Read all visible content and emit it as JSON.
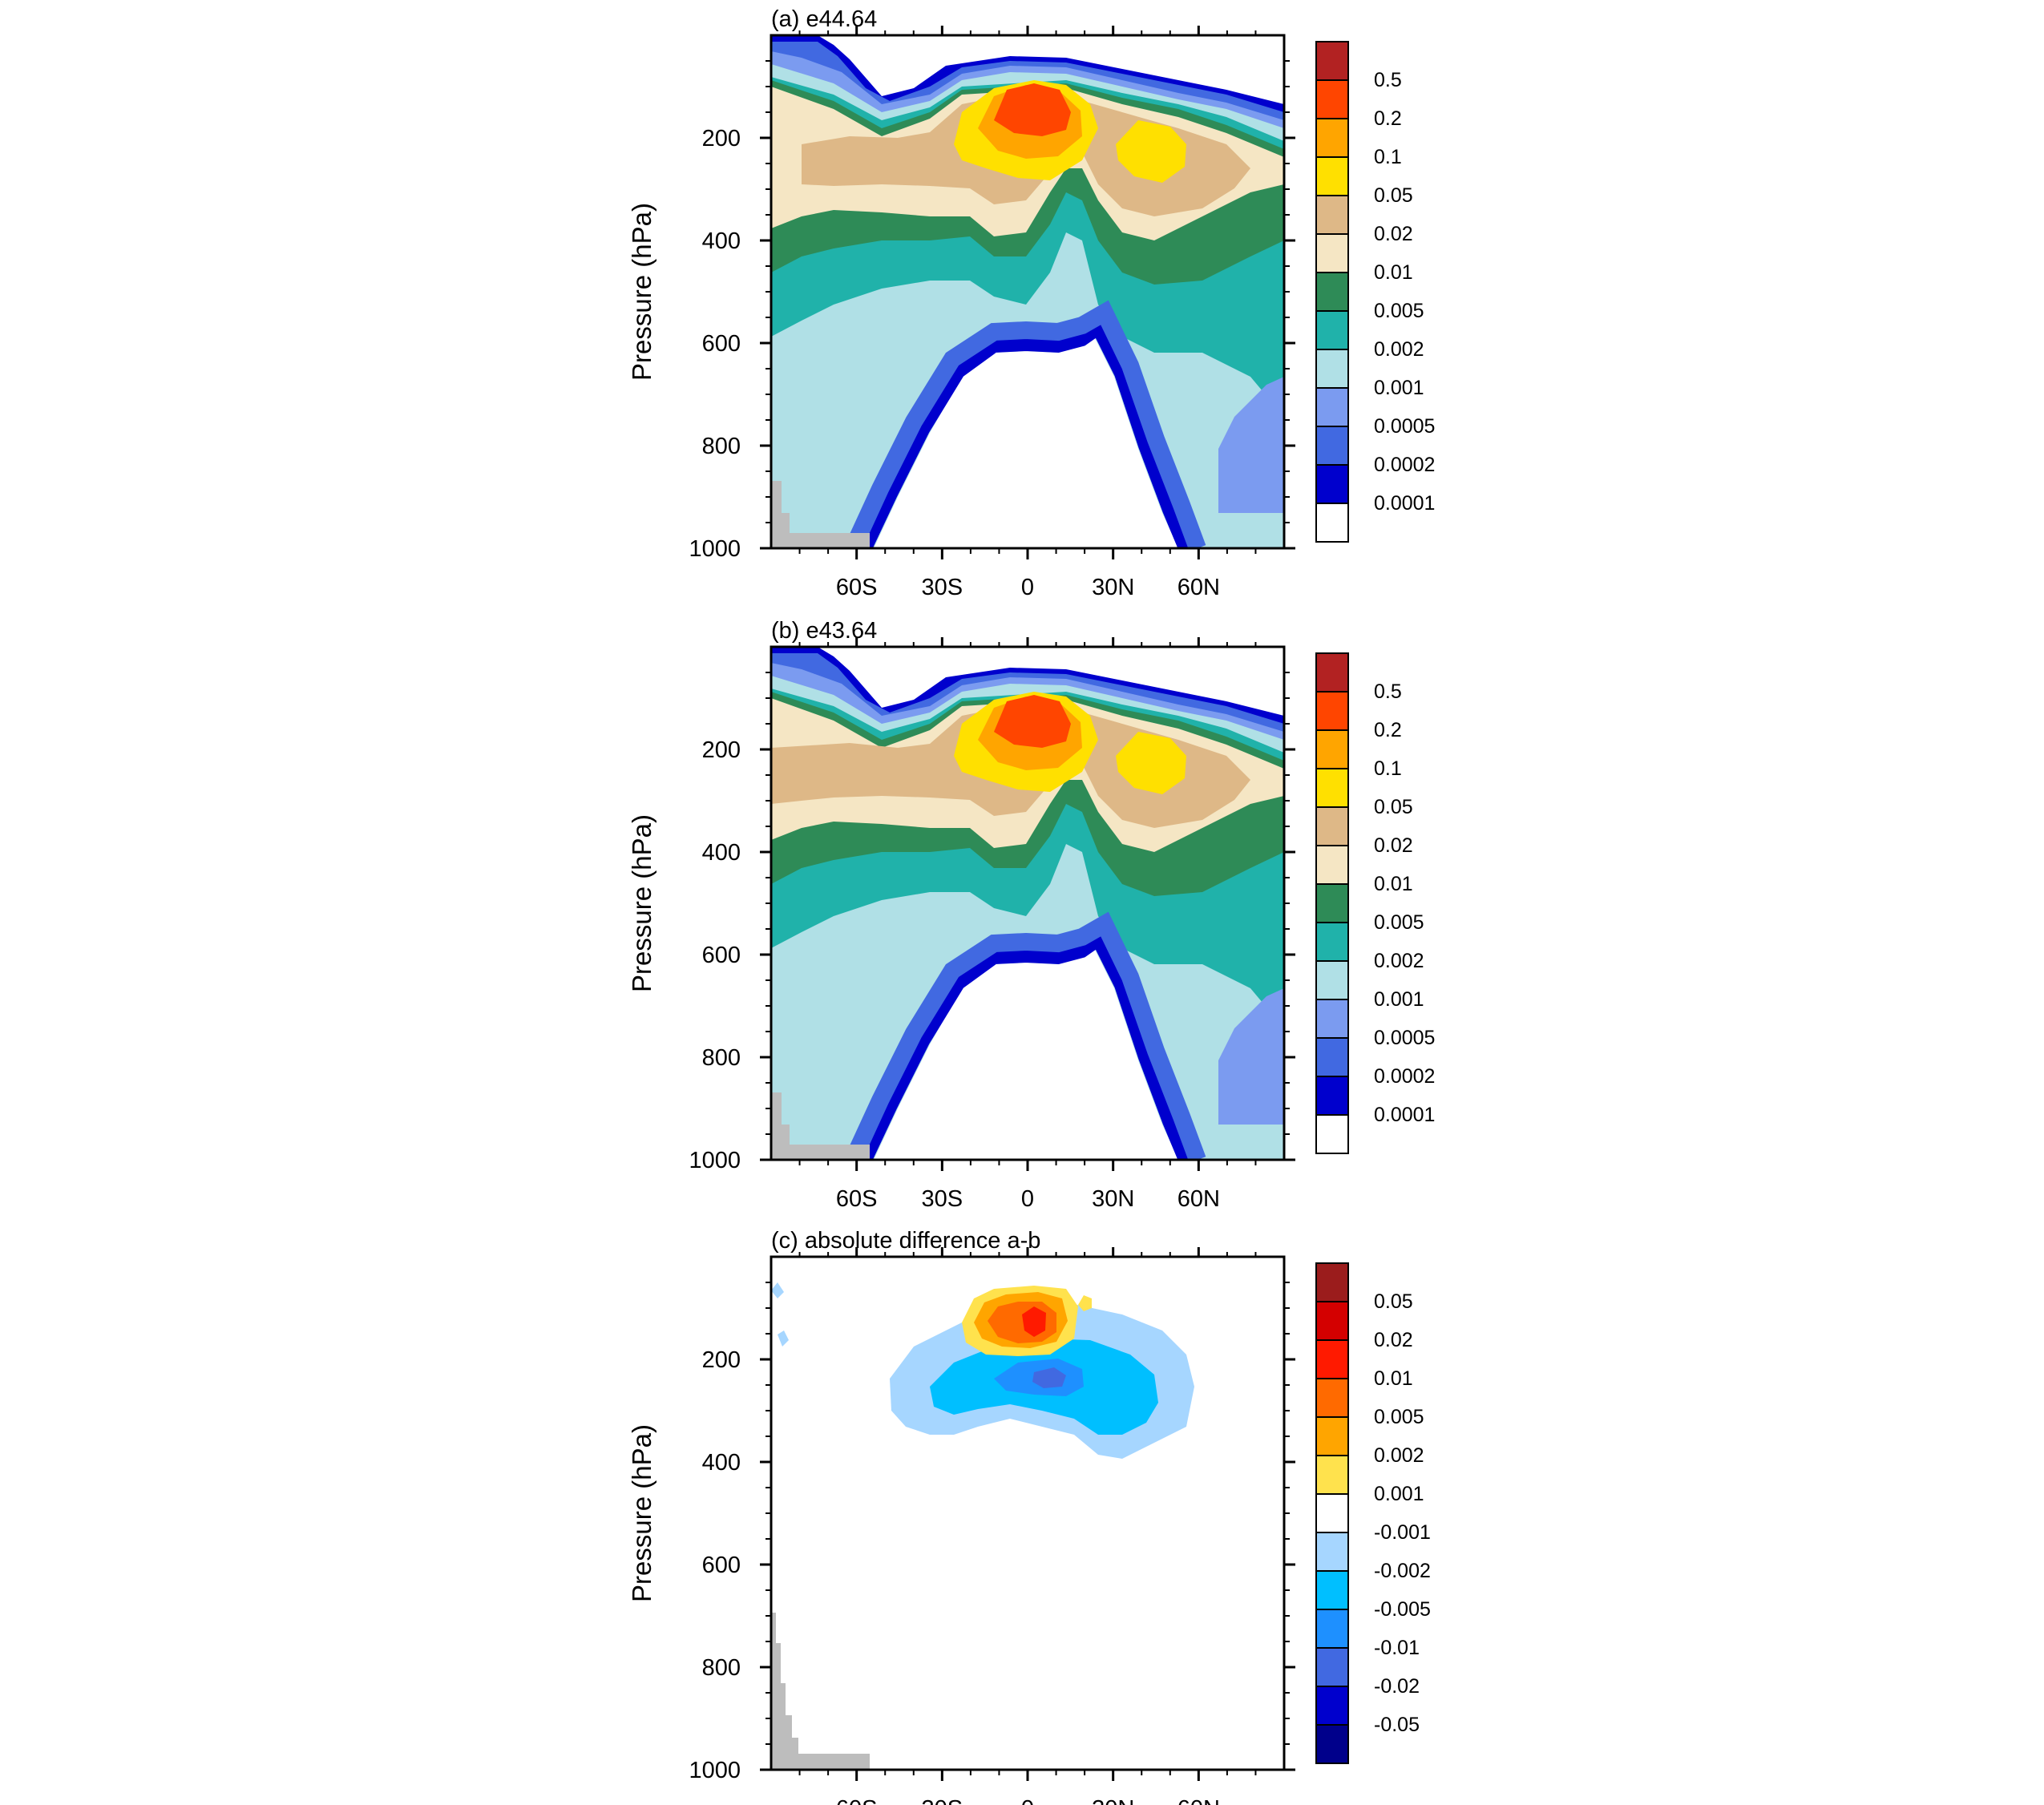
{
  "figure": {
    "xticks": [
      {
        "lat": -60,
        "label": "60S"
      },
      {
        "lat": -30,
        "label": "30S"
      },
      {
        "lat": 0,
        "label": "0"
      },
      {
        "lat": 30,
        "label": "30N"
      },
      {
        "lat": 60,
        "label": "60N"
      }
    ],
    "yticks": [
      {
        "p": 200,
        "label": "200"
      },
      {
        "p": 400,
        "label": "400"
      },
      {
        "p": 600,
        "label": "600"
      },
      {
        "p": 800,
        "label": "800"
      },
      {
        "p": 1000,
        "label": "1000"
      }
    ],
    "ylabel": "Pressure (hPa)",
    "xlim": [
      -90,
      90
    ],
    "ylim": [
      0,
      1000
    ],
    "missing_color": "#bdbdbd"
  },
  "panels": [
    {
      "id": "a",
      "title": "(a) e44.64",
      "colorbar": {
        "labels": [
          "0.5",
          "0.2",
          "0.1",
          "0.05",
          "0.02",
          "0.01",
          "0.005",
          "0.002",
          "0.001",
          "0.0005",
          "0.0002",
          "0.0001"
        ],
        "colors": [
          "#b22222",
          "#ff4500",
          "#ffa500",
          "#ffe000",
          "#deb887",
          "#f5e6c4",
          "#2e8b57",
          "#20b2aa",
          "#b0e0e6",
          "#7b9bf0",
          "#4169e1",
          "#0000cd",
          "#ffffff"
        ]
      }
    },
    {
      "id": "b",
      "title": "(b) e43.64",
      "colorbar": {
        "labels": [
          "0.5",
          "0.2",
          "0.1",
          "0.05",
          "0.02",
          "0.01",
          "0.005",
          "0.002",
          "0.001",
          "0.0005",
          "0.0002",
          "0.0001"
        ],
        "colors": [
          "#b22222",
          "#ff4500",
          "#ffa500",
          "#ffe000",
          "#deb887",
          "#f5e6c4",
          "#2e8b57",
          "#20b2aa",
          "#b0e0e6",
          "#7b9bf0",
          "#4169e1",
          "#0000cd",
          "#ffffff"
        ]
      }
    },
    {
      "id": "c",
      "title": "(c) absolute difference a-b",
      "colorbar": {
        "labels": [
          "0.05",
          "0.02",
          "0.01",
          "0.005",
          "0.002",
          "0.001",
          "-0.001",
          "-0.002",
          "-0.005",
          "-0.01",
          "-0.02",
          "-0.05"
        ],
        "colors": [
          "#9b1c1c",
          "#d40000",
          "#ff1a00",
          "#ff6a00",
          "#ffa500",
          "#ffe24d",
          "#ffffff",
          "#a6d6ff",
          "#00bfff",
          "#1e90ff",
          "#4169e1",
          "#0000cd",
          "#00008b"
        ]
      }
    }
  ],
  "chart_data": [
    {
      "type": "heatmap",
      "title": "(a) e44.64",
      "xlabel": "",
      "ylabel": "Pressure (hPa)",
      "xlim": [
        -90,
        90
      ],
      "ylim": [
        1000,
        30
      ],
      "description_levels": [
        0.0001,
        0.0002,
        0.0005,
        0.001,
        0.002,
        0.005,
        0.01,
        0.02,
        0.05,
        0.1,
        0.2,
        0.5
      ],
      "features": {
        "max_center": {
          "lat": 2,
          "p": 150,
          "level": 0.2
        },
        "secondary_max": {
          "lat": 42,
          "p": 250,
          "level": 0.05
        },
        "minimum_region_bottom_p_range": [
          600,
          1000
        ],
        "minimum_region_lat_range": [
          -55,
          50
        ]
      }
    },
    {
      "type": "heatmap",
      "title": "(b) e43.64",
      "xlabel": "",
      "ylabel": "Pressure (hPa)",
      "xlim": [
        -90,
        90
      ],
      "ylim": [
        1000,
        30
      ],
      "description_levels": [
        0.0001,
        0.0002,
        0.0005,
        0.001,
        0.002,
        0.005,
        0.01,
        0.02,
        0.05,
        0.1,
        0.2,
        0.5
      ],
      "features": {
        "max_center": {
          "lat": 2,
          "p": 150,
          "level": 0.2
        },
        "secondary_max": {
          "lat": 42,
          "p": 250,
          "level": 0.05
        }
      }
    },
    {
      "type": "heatmap",
      "title": "(c) absolute difference a-b",
      "xlabel": "",
      "ylabel": "Pressure (hPa)",
      "xlim": [
        -90,
        90
      ],
      "ylim": [
        1000,
        30
      ],
      "description_levels": [
        -0.05,
        -0.02,
        -0.01,
        -0.005,
        -0.002,
        -0.001,
        0.001,
        0.002,
        0.005,
        0.01,
        0.02,
        0.05
      ],
      "features": {
        "positive_core": {
          "lat": -5,
          "p": 150,
          "level": 0.02
        },
        "negative_band_p_range": [
          200,
          350
        ],
        "negative_band_lat_range": [
          -45,
          55
        ]
      }
    }
  ]
}
